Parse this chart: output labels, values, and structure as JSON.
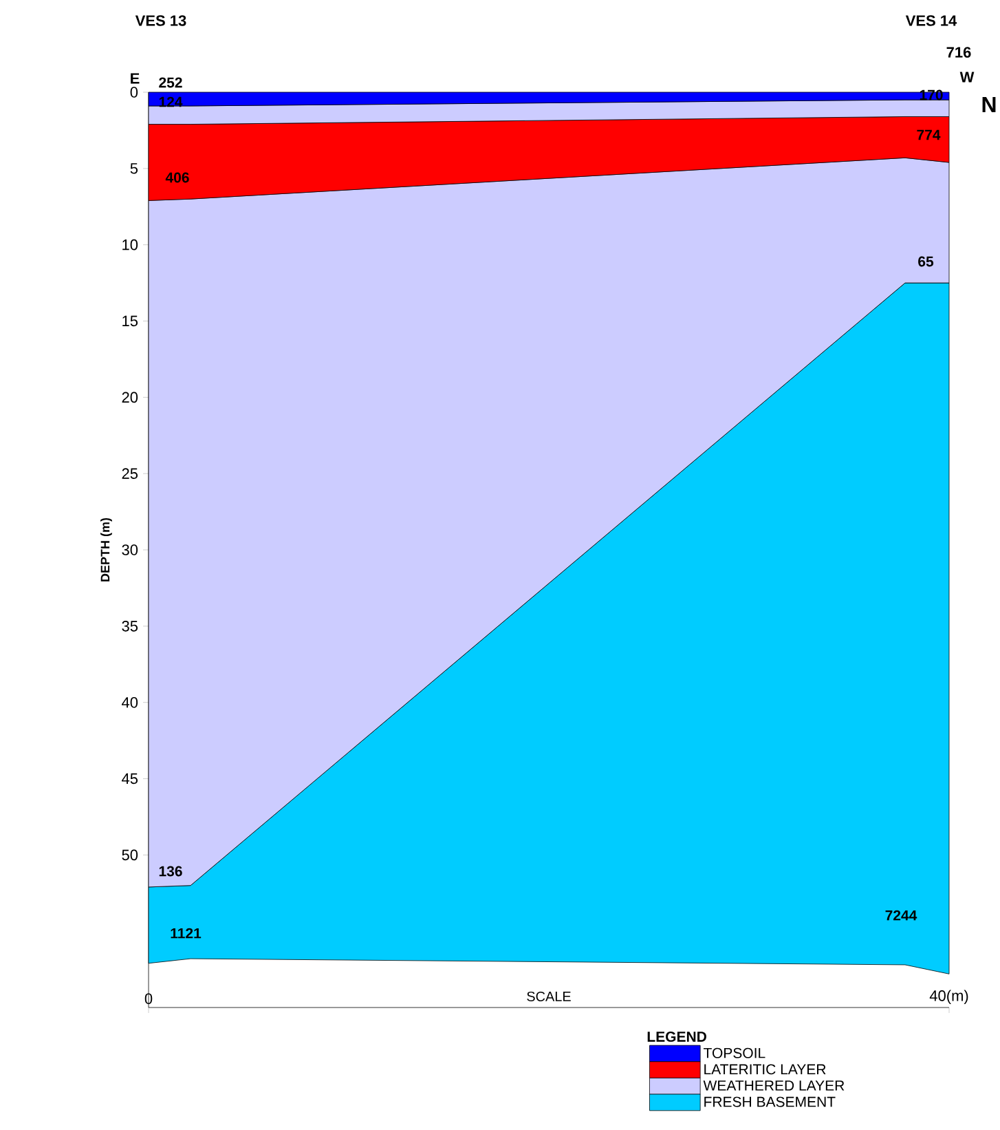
{
  "chart_data": {
    "type": "area",
    "stacked": true,
    "ylabel": "DEPTH (m)",
    "xlabel": "SCALE",
    "legend_title": "LEGEND",
    "legend": "bottom right",
    "x": [
      0,
      2.1,
      37.8,
      40
    ],
    "xlim": [
      0,
      40
    ],
    "xticks": [
      0,
      {
        "value": 40,
        "label": "40(m)"
      }
    ],
    "ylim": [
      60,
      0
    ],
    "yticks": [
      0,
      5,
      10,
      15,
      20,
      25,
      30,
      35,
      40,
      45,
      50
    ],
    "series": [
      {
        "name": "TOPSOIL",
        "color": "#0000ff",
        "values": [
          0.9,
          0.9,
          0.5,
          0.5
        ]
      },
      {
        "color": "#ccccff",
        "values": [
          1.2,
          1.2,
          1.1,
          1.1
        ]
      },
      {
        "name": "LATERITIC LAYER",
        "color": "#ff0000",
        "values": [
          5.0,
          4.9,
          2.7,
          3.0
        ]
      },
      {
        "name": "WEATHERED LAYER",
        "color": "#ccccff",
        "values": [
          45.0,
          45.0,
          8.2,
          7.9
        ]
      },
      {
        "name": "FRESH BASEMENT",
        "color": "#00ccff",
        "values": [
          5.0,
          4.8,
          44.7,
          45.3
        ]
      }
    ],
    "annotations": [
      "VES 13",
      "VES 14",
      "E",
      "W",
      "N",
      "716",
      "252",
      "124",
      "406",
      "136",
      "1121",
      "170",
      "774",
      "65",
      "7244"
    ]
  }
}
